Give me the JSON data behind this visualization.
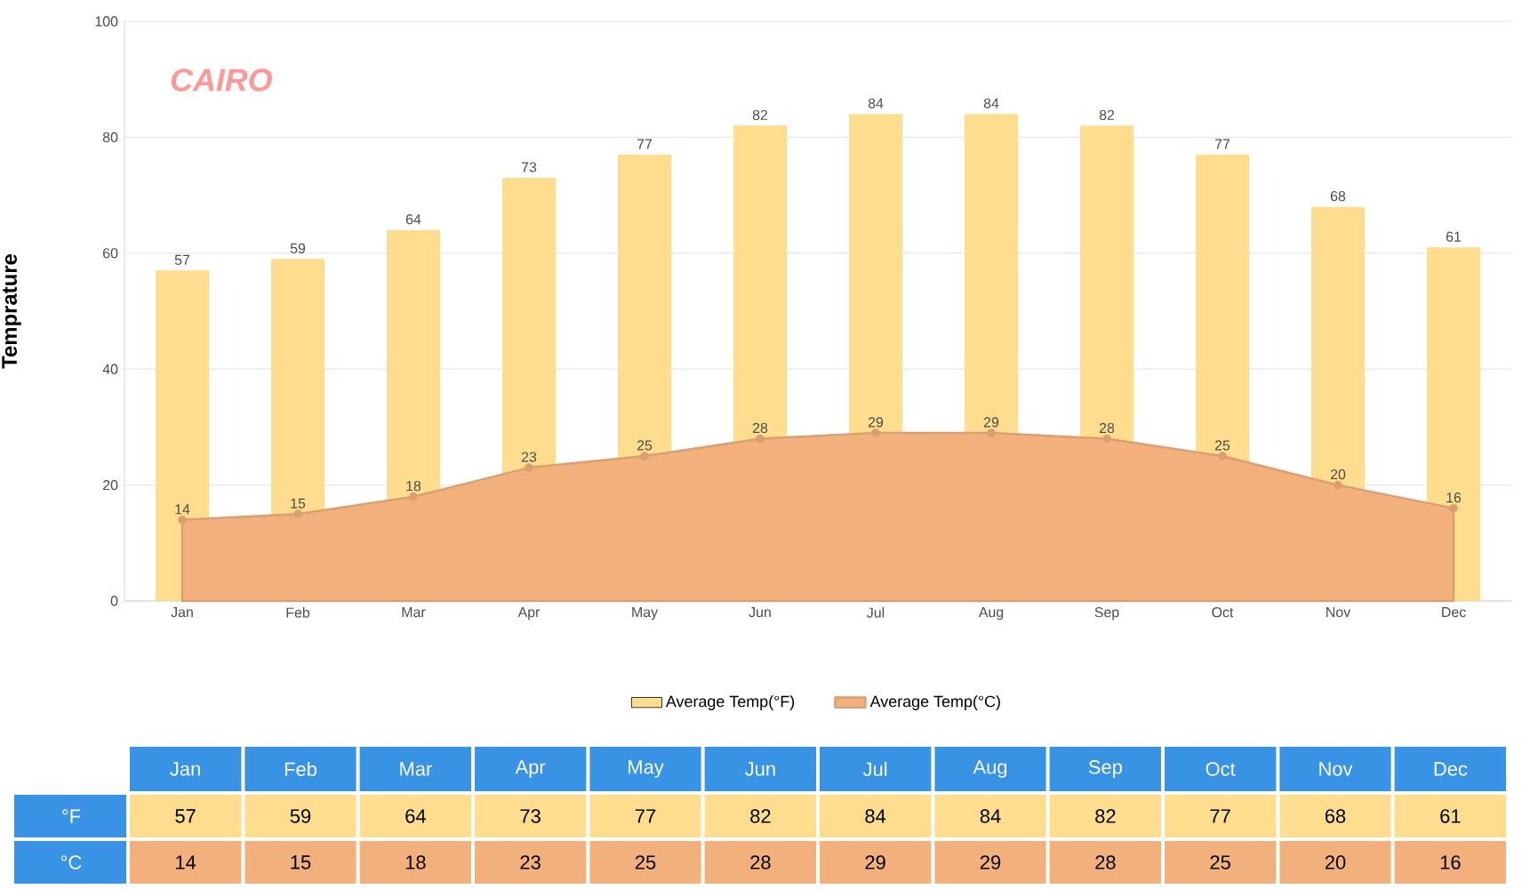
{
  "chart_data": [
    {
      "type": "bar",
      "title": "CAIRO",
      "ylabel": "Temprature",
      "categories": [
        "Jan",
        "Feb",
        "Mar",
        "Apr",
        "May",
        "Jun",
        "Jul",
        "Aug",
        "Sep",
        "Oct",
        "Nov",
        "Dec"
      ],
      "series": [
        {
          "name": "Average Temp(°F)",
          "color": "#fedd8e",
          "values": [
            57,
            59,
            64,
            73,
            77,
            82,
            84,
            84,
            82,
            77,
            68,
            61
          ]
        },
        {
          "name": "Average Temp(°C)",
          "type": "area",
          "color": "#f2b07c",
          "marker": "circle",
          "values": [
            14,
            15,
            18,
            23,
            25,
            28,
            29,
            29,
            28,
            25,
            20,
            16
          ]
        }
      ],
      "ylim": [
        0,
        100
      ],
      "yticks": [
        0,
        20,
        40,
        60,
        80,
        100
      ],
      "grid": "y",
      "legend": "bottom",
      "data_labels": true
    },
    {
      "type": "other",
      "categories": [
        "Jan",
        "Feb",
        "Mar",
        "Apr",
        "May",
        "Jun",
        "Jul",
        "Aug",
        "Sep",
        "Oct",
        "Nov",
        "Dec"
      ],
      "series": [
        {
          "name": "°F",
          "values": [
            57,
            59,
            64,
            73,
            77,
            82,
            84,
            84,
            82,
            77,
            68,
            61
          ]
        },
        {
          "name": "°C",
          "values": [
            14,
            15,
            18,
            23,
            25,
            28,
            29,
            29,
            28,
            25,
            20,
            16
          ]
        }
      ],
      "data_labels": true
    }
  ]
}
